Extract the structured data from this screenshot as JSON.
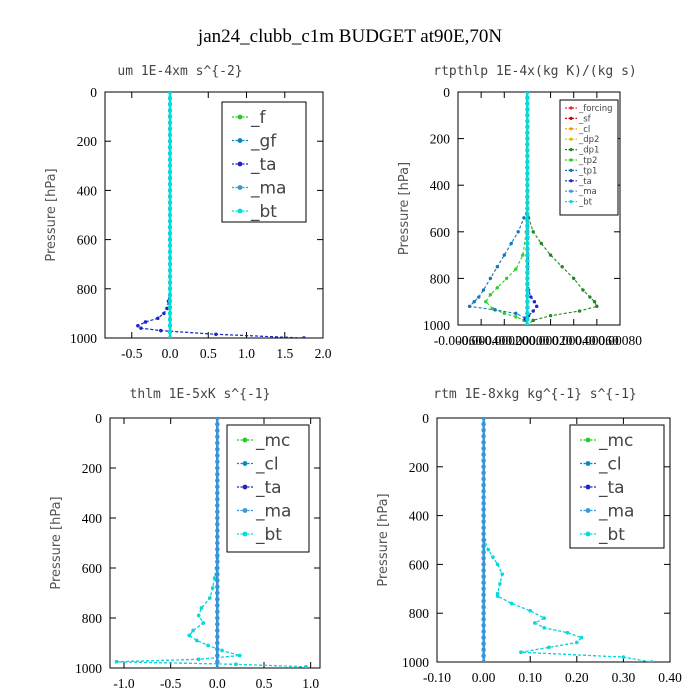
{
  "figure": {
    "title": "jan24_clubb_c1m  BUDGET at90E,70N"
  },
  "chart_data": [
    {
      "type": "line",
      "title": "um  1E-4xm s^{-2}",
      "xlabel": "",
      "ylabel": "Pressure [hPa]",
      "xlim": [
        -0.85,
        2.0
      ],
      "ylim": [
        1000,
        0
      ],
      "x_ticks": [
        "-0.5",
        "0.0",
        "0.5",
        "1.0",
        "1.5",
        "2.0"
      ],
      "x_tick_values": [
        -0.5,
        0.0,
        0.5,
        1.0,
        1.5,
        2.0
      ],
      "y_ticks": [
        "0",
        "200",
        "400",
        "600",
        "800",
        "1000"
      ],
      "y_tick_values": [
        0,
        200,
        400,
        600,
        800,
        1000
      ],
      "legend_position": "top-right",
      "legend_style": "big",
      "series": [
        {
          "name": "_f",
          "color": "#22cc22",
          "y": [
            0,
            100,
            200,
            300,
            400,
            500,
            600,
            700,
            800,
            900,
            950,
            975,
            990,
            1000
          ],
          "x": [
            0,
            0,
            0,
            0,
            0,
            0,
            0,
            0,
            0,
            0,
            0,
            0,
            0,
            0
          ]
        },
        {
          "name": "_gf",
          "color": "#0088cc",
          "y": [
            0,
            200,
            400,
            600,
            800,
            850,
            880,
            900,
            920,
            935,
            950,
            960,
            970,
            985,
            1000
          ],
          "x": [
            0,
            0,
            0,
            0,
            0,
            -0.02,
            -0.04,
            -0.08,
            -0.16,
            -0.32,
            -0.42,
            -0.38,
            -0.12,
            0.6,
            1.75
          ]
        },
        {
          "name": "_ta",
          "color": "#2222cc",
          "y": [
            0,
            200,
            400,
            600,
            800,
            850,
            880,
            900,
            920,
            935,
            950,
            960,
            970,
            985,
            1000
          ],
          "x": [
            0,
            0,
            0,
            0,
            0,
            -0.02,
            -0.04,
            -0.08,
            -0.16,
            -0.32,
            -0.42,
            -0.38,
            -0.12,
            0.6,
            1.75
          ]
        },
        {
          "name": "_ma",
          "color": "#3399dd",
          "y": [
            0,
            500,
            1000
          ],
          "x": [
            0,
            0,
            0
          ]
        },
        {
          "name": "_bt",
          "color": "#00dddd",
          "y": [
            0,
            500,
            1000
          ],
          "x": [
            0,
            0,
            0
          ]
        }
      ]
    },
    {
      "type": "line",
      "title": "rtpthlp  1E-4x(kg K)/(kg s)",
      "xlabel": "",
      "ylabel": "Pressure [hPa]",
      "xlim": [
        -0.0006,
        0.0008
      ],
      "ylim": [
        1000,
        0
      ],
      "x_ticks": [
        "-0.00060",
        "-0.00040",
        "-0.00020",
        "0.00000",
        "0.00020",
        "0.00040",
        "0.00060",
        "0.00080"
      ],
      "x_tick_values": [
        -0.0006,
        -0.0004,
        -0.0002,
        0.0,
        0.0002,
        0.0004,
        0.0006,
        0.0008
      ],
      "y_ticks": [
        "0",
        "200",
        "400",
        "600",
        "800",
        "1000"
      ],
      "y_tick_values": [
        0,
        200,
        400,
        600,
        800,
        1000
      ],
      "legend_position": "top-right",
      "legend_style": "small",
      "series": [
        {
          "name": "_forcing",
          "color": "#ee2222",
          "y": [
            0,
            200,
            400,
            600,
            800,
            1000
          ],
          "x": [
            0,
            0,
            0,
            0,
            0,
            0
          ]
        },
        {
          "name": "_sf",
          "color": "#dd0000",
          "y": [
            0,
            200,
            400,
            600,
            800,
            1000
          ],
          "x": [
            0,
            0,
            0,
            0,
            0,
            0
          ]
        },
        {
          "name": "_cl",
          "color": "#ee9900",
          "y": [
            0,
            500,
            1000
          ],
          "x": [
            0,
            0,
            0
          ]
        },
        {
          "name": "_dp2",
          "color": "#ddbb00",
          "y": [
            0,
            500,
            1000
          ],
          "x": [
            0,
            0,
            0
          ]
        },
        {
          "name": "_dp1",
          "color": "#228822",
          "y": [
            0,
            500,
            540,
            600,
            650,
            700,
            750,
            800,
            850,
            880,
            900,
            920,
            940,
            960,
            980,
            1000
          ],
          "x": [
            0,
            0,
            1e-05,
            5e-05,
            0.00012,
            0.0002,
            0.0003,
            0.0004,
            0.00048,
            0.00054,
            0.00058,
            0.0006,
            0.00045,
            0.0002,
            5e-05,
            0
          ]
        },
        {
          "name": "_tp2",
          "color": "#33cc33",
          "y": [
            0,
            600,
            700,
            760,
            800,
            840,
            870,
            900,
            930,
            950,
            965,
            980,
            1000
          ],
          "x": [
            0,
            -1e-05,
            -4e-05,
            -0.0001,
            -0.00018,
            -0.00026,
            -0.00032,
            -0.00036,
            -0.0003,
            -0.0002,
            -0.0001,
            -3e-05,
            0
          ]
        },
        {
          "name": "_tp1",
          "color": "#1177bb",
          "y": [
            0,
            500,
            540,
            600,
            650,
            700,
            750,
            800,
            850,
            880,
            900,
            920,
            935,
            950,
            970,
            1000
          ],
          "x": [
            0,
            0,
            -3e-05,
            -8e-05,
            -0.00014,
            -0.0002,
            -0.00026,
            -0.00032,
            -0.00038,
            -0.00042,
            -0.00046,
            -0.0005,
            -0.00028,
            -0.0001,
            -2e-05,
            0
          ]
        },
        {
          "name": "_ta",
          "color": "#2222cc",
          "y": [
            0,
            850,
            880,
            900,
            920,
            940,
            960,
            975,
            1000
          ],
          "x": [
            0,
            1e-05,
            3e-05,
            6e-05,
            8e-05,
            5e-05,
            1e-05,
            -2e-05,
            0
          ]
        },
        {
          "name": "_ma",
          "color": "#3399dd",
          "y": [
            0,
            500,
            1000
          ],
          "x": [
            0,
            0,
            0
          ]
        },
        {
          "name": "_bt",
          "color": "#00dddd",
          "y": [
            0,
            500,
            1000
          ],
          "x": [
            0,
            0,
            0
          ]
        }
      ]
    },
    {
      "type": "line",
      "title": "thlm  1E-5xK s^{-1}",
      "xlabel": "",
      "ylabel": "Pressure [hPa]",
      "xlim": [
        -1.15,
        1.1
      ],
      "ylim": [
        1000,
        0
      ],
      "x_ticks": [
        "-1.0",
        "-0.5",
        "0.0",
        "0.5",
        "1.0"
      ],
      "x_tick_values": [
        -1.0,
        -0.5,
        0.0,
        0.5,
        1.0
      ],
      "y_ticks": [
        "0",
        "200",
        "400",
        "600",
        "800",
        "1000"
      ],
      "y_tick_values": [
        0,
        200,
        400,
        600,
        800,
        1000
      ],
      "legend_position": "top-right",
      "legend_style": "big",
      "series": [
        {
          "name": "_mc",
          "color": "#22cc22",
          "y": [
            0,
            100,
            200,
            300,
            400,
            500,
            600,
            700,
            800,
            900,
            950,
            1000
          ],
          "x": [
            0,
            0,
            0,
            0,
            0,
            0,
            0,
            0,
            0,
            0,
            0,
            0
          ]
        },
        {
          "name": "_cl",
          "color": "#0088cc",
          "y": [
            0,
            500,
            560,
            600,
            640,
            680,
            720,
            760,
            790,
            820,
            850,
            870,
            890,
            910,
            930,
            950,
            965,
            975,
            985,
            995,
            1000
          ],
          "x": [
            0,
            0,
            0,
            -0.01,
            -0.03,
            -0.05,
            -0.08,
            -0.17,
            -0.2,
            -0.15,
            -0.26,
            -0.3,
            -0.22,
            -0.1,
            0.05,
            0.24,
            -0.2,
            -1.08,
            0.2,
            0.95,
            0.95
          ]
        },
        {
          "name": "_ta",
          "color": "#2222cc",
          "y": [
            0,
            500,
            1000
          ],
          "x": [
            0,
            0,
            0
          ]
        },
        {
          "name": "_ma",
          "color": "#3399dd",
          "y": [
            0,
            500,
            1000
          ],
          "x": [
            0,
            0,
            0
          ]
        },
        {
          "name": "_bt",
          "color": "#00dddd",
          "y": [
            0,
            500,
            560,
            600,
            640,
            680,
            720,
            760,
            790,
            820,
            850,
            870,
            890,
            910,
            930,
            950,
            965,
            975,
            985,
            995,
            1000
          ],
          "x": [
            0,
            0,
            0,
            -0.01,
            -0.03,
            -0.05,
            -0.08,
            -0.17,
            -0.2,
            -0.15,
            -0.26,
            -0.3,
            -0.22,
            -0.1,
            0.05,
            0.24,
            -0.2,
            -1.08,
            0.2,
            0.95,
            0.95
          ]
        }
      ]
    },
    {
      "type": "line",
      "title": "rtm  1E-8xkg kg^{-1} s^{-1}",
      "xlabel": "",
      "ylabel": "Pressure [hPa]",
      "xlim": [
        -0.1,
        0.4
      ],
      "ylim": [
        1000,
        0
      ],
      "x_ticks": [
        "-0.10",
        "0.00",
        "0.10",
        "0.20",
        "0.30",
        "0.40"
      ],
      "x_tick_values": [
        -0.1,
        0.0,
        0.1,
        0.2,
        0.3,
        0.4
      ],
      "y_ticks": [
        "0",
        "200",
        "400",
        "600",
        "800",
        "1000"
      ],
      "y_tick_values": [
        0,
        200,
        400,
        600,
        800,
        1000
      ],
      "legend_position": "top-right",
      "legend_style": "big",
      "series": [
        {
          "name": "_mc",
          "color": "#22cc22",
          "y": [
            0,
            100,
            200,
            300,
            400,
            500,
            600,
            700,
            800,
            900,
            950,
            1000
          ],
          "x": [
            0,
            0,
            0,
            0,
            0,
            0,
            0,
            0,
            0,
            0,
            0,
            0
          ]
        },
        {
          "name": "_cl",
          "color": "#0088cc",
          "y": [
            0,
            400,
            500,
            540,
            570,
            600,
            640,
            680,
            720,
            730,
            760,
            790,
            820,
            840,
            860,
            880,
            900,
            920,
            940,
            960,
            980,
            1000
          ],
          "x": [
            0,
            0,
            0.002,
            0.01,
            0.02,
            0.03,
            0.04,
            0.035,
            0.03,
            0.03,
            0.06,
            0.1,
            0.13,
            0.11,
            0.13,
            0.18,
            0.21,
            0.2,
            0.14,
            0.08,
            0.3,
            0.36
          ]
        },
        {
          "name": "_ta",
          "color": "#2222cc",
          "y": [
            0,
            500,
            1000
          ],
          "x": [
            0,
            0,
            0
          ]
        },
        {
          "name": "_ma",
          "color": "#3399dd",
          "y": [
            0,
            500,
            1000
          ],
          "x": [
            0,
            0,
            0
          ]
        },
        {
          "name": "_bt",
          "color": "#00dddd",
          "y": [
            0,
            400,
            500,
            540,
            570,
            600,
            640,
            680,
            720,
            730,
            760,
            790,
            820,
            840,
            860,
            880,
            900,
            920,
            940,
            960,
            980,
            1000
          ],
          "x": [
            0,
            0,
            0.002,
            0.01,
            0.02,
            0.03,
            0.04,
            0.035,
            0.03,
            0.03,
            0.06,
            0.1,
            0.13,
            0.11,
            0.13,
            0.18,
            0.21,
            0.2,
            0.14,
            0.08,
            0.3,
            0.36
          ]
        }
      ]
    }
  ]
}
